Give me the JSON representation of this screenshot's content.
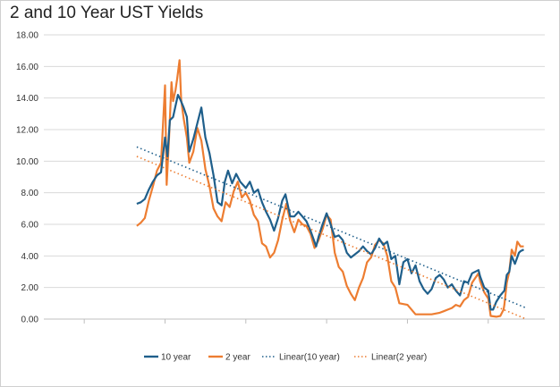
{
  "chart_data": {
    "type": "line",
    "title": "2 and 10 Year UST Yields",
    "xlabel": "",
    "ylabel": "",
    "ylim": [
      0,
      18
    ],
    "yticks": [
      "0.00",
      "2.00",
      "4.00",
      "6.00",
      "8.00",
      "10.00",
      "12.00",
      "14.00",
      "16.00",
      "18.00"
    ],
    "xlim": [
      1965,
      2027
    ],
    "grid": true,
    "legend": "bottom",
    "series": [
      {
        "name": "10 year",
        "color": "#1f5f8b",
        "x": [
          1976.5,
          1977,
          1977.5,
          1978,
          1978.5,
          1979,
          1979.5,
          1980,
          1980.3,
          1980.6,
          1981,
          1981.3,
          1981.6,
          1981.9,
          1982.3,
          1982.7,
          1983,
          1983.5,
          1984,
          1984.5,
          1985,
          1985.5,
          1986,
          1986.5,
          1987,
          1987.4,
          1987.8,
          1988.3,
          1988.8,
          1989.3,
          1990,
          1990.5,
          1991,
          1991.5,
          1992,
          1992.5,
          1993,
          1993.5,
          1994,
          1994.5,
          1994.9,
          1995.5,
          1996,
          1996.5,
          1997,
          1997.5,
          1998,
          1998.7,
          1999,
          1999.5,
          2000,
          2000.5,
          2001,
          2001.5,
          2002,
          2002.5,
          2003,
          2003.5,
          2004,
          2004.5,
          2005,
          2005.5,
          2006,
          2006.5,
          2007,
          2007.5,
          2008,
          2008.5,
          2009,
          2009.5,
          2010,
          2010.5,
          2011,
          2011.5,
          2012,
          2012.5,
          2013,
          2013.5,
          2014,
          2014.5,
          2015,
          2015.5,
          2016,
          2016.5,
          2017,
          2017.5,
          2018,
          2018.8,
          2019,
          2019.5,
          2020,
          2020.3,
          2020.6,
          2021,
          2021.5,
          2022,
          2022.3,
          2022.6,
          2022.9,
          2023.3,
          2023.8,
          2024,
          2024.4
        ],
        "y": [
          7.3,
          7.4,
          7.6,
          8.2,
          8.7,
          9.1,
          9.3,
          11.5,
          10.3,
          12.6,
          12.8,
          13.5,
          14.2,
          13.9,
          13.4,
          12.8,
          10.6,
          11.4,
          12.4,
          13.4,
          11.5,
          10.5,
          9.1,
          7.4,
          7.2,
          8.7,
          9.4,
          8.6,
          9.2,
          8.7,
          8.3,
          8.7,
          8.0,
          8.2,
          7.4,
          6.8,
          6.3,
          5.6,
          6.4,
          7.5,
          7.9,
          6.5,
          6.5,
          6.8,
          6.5,
          6.2,
          5.6,
          4.6,
          5.2,
          6.0,
          6.7,
          6.0,
          5.2,
          5.3,
          5.0,
          4.2,
          3.9,
          4.1,
          4.3,
          4.6,
          4.3,
          4.1,
          4.5,
          5.1,
          4.7,
          4.9,
          3.8,
          4.0,
          2.2,
          3.6,
          3.8,
          2.9,
          3.4,
          2.4,
          1.9,
          1.6,
          1.9,
          2.6,
          2.8,
          2.5,
          2.0,
          2.2,
          1.8,
          1.5,
          2.4,
          2.3,
          2.9,
          3.1,
          2.7,
          2.0,
          1.8,
          0.6,
          0.6,
          1.1,
          1.5,
          1.8,
          2.8,
          3.0,
          4.0,
          3.5,
          4.2,
          4.3,
          4.4
        ]
      },
      {
        "name": "2 year",
        "color": "#ed7d31",
        "x": [
          1976.5,
          1977,
          1977.5,
          1978,
          1978.5,
          1979,
          1979.5,
          1980,
          1980.2,
          1980.5,
          1980.8,
          1981,
          1981.3,
          1981.5,
          1981.8,
          1982,
          1982.3,
          1982.7,
          1983,
          1983.5,
          1984,
          1984.5,
          1985,
          1985.5,
          1986,
          1986.5,
          1987,
          1987.5,
          1988,
          1988.5,
          1989,
          1989.5,
          1990,
          1990.5,
          1991,
          1991.5,
          1992,
          1992.5,
          1993,
          1993.5,
          1994,
          1994.5,
          1995,
          1995.5,
          1996,
          1996.5,
          1997,
          1997.5,
          1998,
          1998.5,
          1999,
          1999.5,
          2000,
          2000.5,
          2001,
          2001.5,
          2002,
          2002.5,
          2003,
          2003.5,
          2004,
          2004.5,
          2005,
          2005.5,
          2006,
          2006.5,
          2007,
          2007.5,
          2008,
          2008.5,
          2009,
          2010,
          2011,
          2012,
          2013,
          2014,
          2014.5,
          2015,
          2015.5,
          2016,
          2016.5,
          2017,
          2017.5,
          2018,
          2018.8,
          2019,
          2019.5,
          2020,
          2020.3,
          2021,
          2021.5,
          2021.9,
          2022,
          2022.3,
          2022.6,
          2022.9,
          2023.3,
          2023.6,
          2024,
          2024.4
        ],
        "y": [
          5.9,
          6.1,
          6.4,
          7.5,
          8.4,
          9.4,
          9.9,
          14.8,
          8.5,
          11.5,
          15.0,
          13.8,
          14.5,
          15.2,
          16.4,
          13.9,
          12.7,
          11.5,
          9.9,
          10.6,
          12.1,
          11.3,
          9.5,
          8.4,
          7.0,
          6.5,
          6.2,
          7.4,
          7.1,
          8.1,
          8.7,
          7.7,
          8.0,
          7.5,
          6.6,
          6.2,
          4.8,
          4.6,
          3.9,
          4.2,
          5.0,
          6.3,
          7.3,
          6.2,
          5.5,
          6.3,
          6.0,
          5.9,
          5.4,
          4.5,
          5.0,
          5.7,
          6.6,
          6.3,
          4.2,
          3.3,
          3.0,
          2.1,
          1.6,
          1.2,
          2.0,
          2.6,
          3.6,
          3.9,
          4.7,
          5.0,
          4.8,
          4.0,
          2.4,
          2.0,
          1.0,
          0.9,
          0.3,
          0.3,
          0.3,
          0.4,
          0.5,
          0.6,
          0.7,
          0.9,
          0.8,
          1.2,
          1.4,
          2.3,
          2.9,
          2.4,
          1.7,
          1.3,
          0.2,
          0.15,
          0.2,
          0.6,
          0.9,
          2.3,
          3.0,
          4.4,
          4.0,
          4.9,
          4.6,
          4.6
        ]
      },
      {
        "name": "Linear(10 year)",
        "color": "#1f5f8b",
        "dashed": true,
        "x": [
          1976.5,
          2024.7
        ],
        "y": [
          10.9,
          0.7
        ]
      },
      {
        "name": "Linear(2 year)",
        "color": "#ed7d31",
        "dashed": true,
        "x": [
          1976.5,
          2024.7
        ],
        "y": [
          10.3,
          0.0
        ]
      }
    ]
  }
}
